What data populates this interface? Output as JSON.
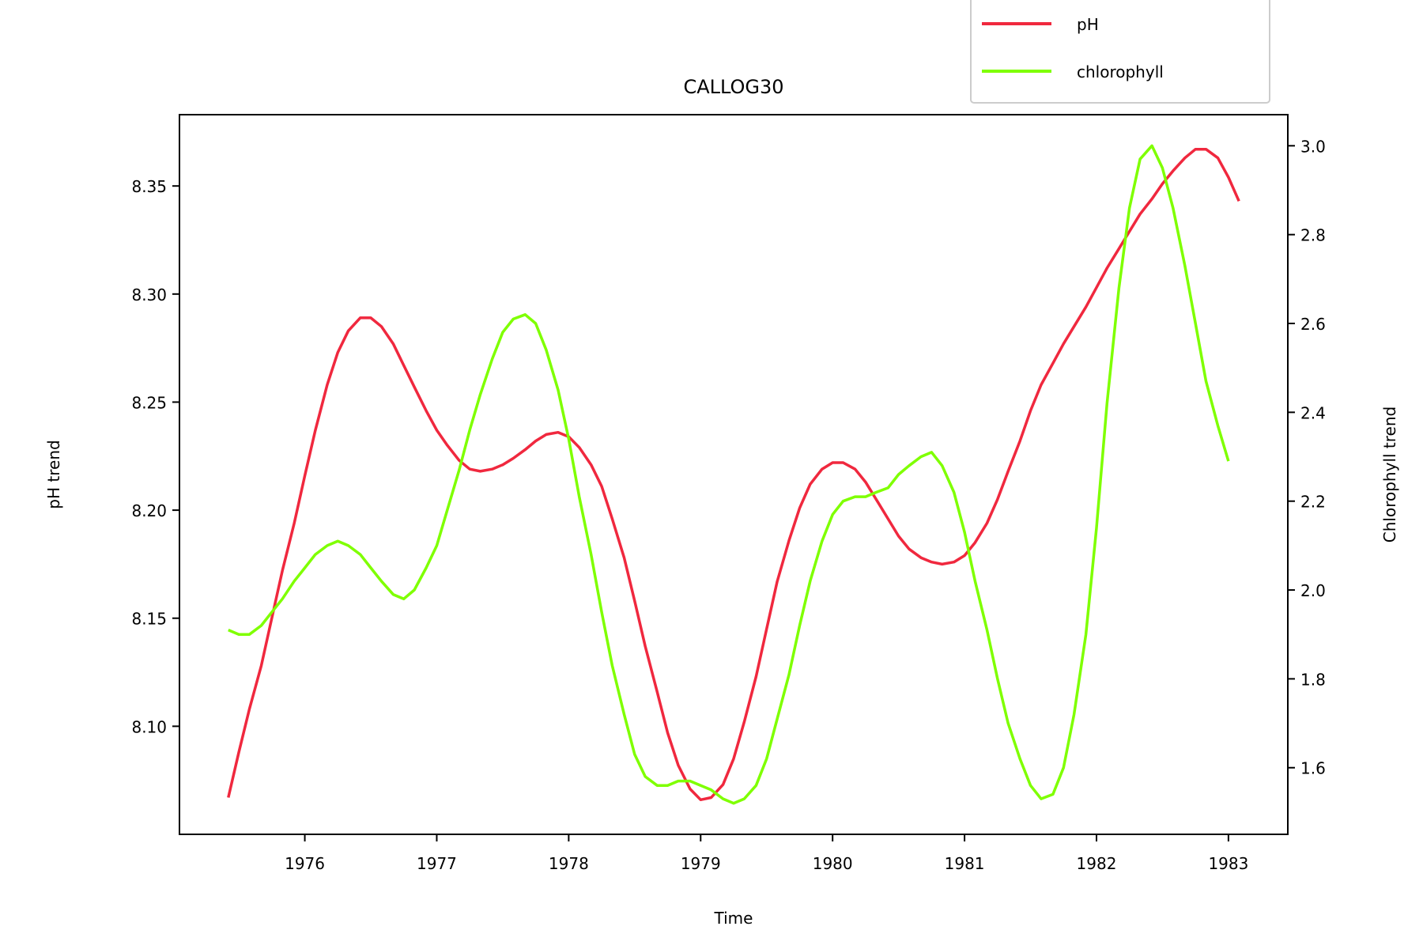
{
  "chart_data": {
    "type": "line",
    "title": "CALLOG30",
    "xlabel": "Time",
    "ylabel_left": "pH trend",
    "ylabel_right": "Chlorophyll trend",
    "xlim": [
      1975.05,
      1983.45
    ],
    "ylim_left": [
      8.05,
      8.383
    ],
    "ylim_right": [
      1.45,
      3.07
    ],
    "x_ticks": [
      "1976",
      "1977",
      "1978",
      "1979",
      "1980",
      "1981",
      "1982",
      "1983"
    ],
    "y_ticks_left": [
      "8.10",
      "8.15",
      "8.20",
      "8.25",
      "8.30",
      "8.35"
    ],
    "y_ticks_right": [
      "1.6",
      "1.8",
      "2.0",
      "2.2",
      "2.4",
      "2.6",
      "2.8",
      "3.0"
    ],
    "legend_position": "top-right",
    "grid": false,
    "series": [
      {
        "name": "pH",
        "axis": "left",
        "color": "#f0283e",
        "points": [
          [
            1975.42,
            8.067
          ],
          [
            1975.5,
            8.088
          ],
          [
            1975.58,
            8.108
          ],
          [
            1975.67,
            8.128
          ],
          [
            1975.75,
            8.15
          ],
          [
            1975.83,
            8.172
          ],
          [
            1975.92,
            8.194
          ],
          [
            1976.0,
            8.216
          ],
          [
            1976.08,
            8.237
          ],
          [
            1976.17,
            8.258
          ],
          [
            1976.25,
            8.273
          ],
          [
            1976.33,
            8.283
          ],
          [
            1976.42,
            8.289
          ],
          [
            1976.5,
            8.289
          ],
          [
            1976.58,
            8.285
          ],
          [
            1976.67,
            8.277
          ],
          [
            1976.75,
            8.267
          ],
          [
            1976.83,
            8.257
          ],
          [
            1976.92,
            8.246
          ],
          [
            1977.0,
            8.237
          ],
          [
            1977.08,
            8.23
          ],
          [
            1977.17,
            8.223
          ],
          [
            1977.25,
            8.219
          ],
          [
            1977.33,
            8.218
          ],
          [
            1977.42,
            8.219
          ],
          [
            1977.5,
            8.221
          ],
          [
            1977.58,
            8.224
          ],
          [
            1977.67,
            8.228
          ],
          [
            1977.75,
            8.232
          ],
          [
            1977.83,
            8.235
          ],
          [
            1977.92,
            8.236
          ],
          [
            1978.0,
            8.234
          ],
          [
            1978.08,
            8.229
          ],
          [
            1978.17,
            8.221
          ],
          [
            1978.25,
            8.211
          ],
          [
            1978.33,
            8.196
          ],
          [
            1978.42,
            8.178
          ],
          [
            1978.5,
            8.158
          ],
          [
            1978.58,
            8.137
          ],
          [
            1978.67,
            8.116
          ],
          [
            1978.75,
            8.097
          ],
          [
            1978.83,
            8.082
          ],
          [
            1978.92,
            8.071
          ],
          [
            1979.0,
            8.066
          ],
          [
            1979.08,
            8.067
          ],
          [
            1979.17,
            8.073
          ],
          [
            1979.25,
            8.085
          ],
          [
            1979.33,
            8.102
          ],
          [
            1979.42,
            8.123
          ],
          [
            1979.5,
            8.145
          ],
          [
            1979.58,
            8.167
          ],
          [
            1979.67,
            8.186
          ],
          [
            1979.75,
            8.201
          ],
          [
            1979.83,
            8.212
          ],
          [
            1979.92,
            8.219
          ],
          [
            1980.0,
            8.222
          ],
          [
            1980.08,
            8.222
          ],
          [
            1980.17,
            8.219
          ],
          [
            1980.25,
            8.213
          ],
          [
            1980.33,
            8.205
          ],
          [
            1980.42,
            8.196
          ],
          [
            1980.5,
            8.188
          ],
          [
            1980.58,
            8.182
          ],
          [
            1980.67,
            8.178
          ],
          [
            1980.75,
            8.176
          ],
          [
            1980.83,
            8.175
          ],
          [
            1980.92,
            8.176
          ],
          [
            1981.0,
            8.179
          ],
          [
            1981.08,
            8.185
          ],
          [
            1981.17,
            8.194
          ],
          [
            1981.25,
            8.205
          ],
          [
            1981.33,
            8.218
          ],
          [
            1981.42,
            8.232
          ],
          [
            1981.5,
            8.246
          ],
          [
            1981.58,
            8.258
          ],
          [
            1981.67,
            8.268
          ],
          [
            1981.75,
            8.277
          ],
          [
            1981.83,
            8.285
          ],
          [
            1981.92,
            8.294
          ],
          [
            1982.0,
            8.303
          ],
          [
            1982.08,
            8.312
          ],
          [
            1982.17,
            8.321
          ],
          [
            1982.25,
            8.329
          ],
          [
            1982.33,
            8.337
          ],
          [
            1982.42,
            8.344
          ],
          [
            1982.5,
            8.351
          ],
          [
            1982.58,
            8.357
          ],
          [
            1982.67,
            8.363
          ],
          [
            1982.75,
            8.367
          ],
          [
            1982.83,
            8.367
          ],
          [
            1982.92,
            8.363
          ],
          [
            1983.0,
            8.354
          ],
          [
            1983.08,
            8.343
          ]
        ]
      },
      {
        "name": "chlorophyll",
        "axis": "right",
        "color": "#7fff00",
        "points": [
          [
            1975.42,
            1.91
          ],
          [
            1975.5,
            1.9
          ],
          [
            1975.58,
            1.9
          ],
          [
            1975.67,
            1.92
          ],
          [
            1975.75,
            1.95
          ],
          [
            1975.83,
            1.98
          ],
          [
            1975.92,
            2.02
          ],
          [
            1976.0,
            2.05
          ],
          [
            1976.08,
            2.08
          ],
          [
            1976.17,
            2.1
          ],
          [
            1976.25,
            2.11
          ],
          [
            1976.33,
            2.1
          ],
          [
            1976.42,
            2.08
          ],
          [
            1976.5,
            2.05
          ],
          [
            1976.58,
            2.02
          ],
          [
            1976.67,
            1.99
          ],
          [
            1976.75,
            1.98
          ],
          [
            1976.83,
            2.0
          ],
          [
            1976.92,
            2.05
          ],
          [
            1977.0,
            2.1
          ],
          [
            1977.08,
            2.18
          ],
          [
            1977.17,
            2.27
          ],
          [
            1977.25,
            2.36
          ],
          [
            1977.33,
            2.44
          ],
          [
            1977.42,
            2.52
          ],
          [
            1977.5,
            2.58
          ],
          [
            1977.58,
            2.61
          ],
          [
            1977.67,
            2.62
          ],
          [
            1977.75,
            2.6
          ],
          [
            1977.83,
            2.54
          ],
          [
            1977.92,
            2.45
          ],
          [
            1978.0,
            2.34
          ],
          [
            1978.08,
            2.21
          ],
          [
            1978.17,
            2.08
          ],
          [
            1978.25,
            1.95
          ],
          [
            1978.33,
            1.83
          ],
          [
            1978.42,
            1.72
          ],
          [
            1978.5,
            1.63
          ],
          [
            1978.58,
            1.58
          ],
          [
            1978.67,
            1.56
          ],
          [
            1978.75,
            1.56
          ],
          [
            1978.83,
            1.57
          ],
          [
            1978.92,
            1.57
          ],
          [
            1979.0,
            1.56
          ],
          [
            1979.08,
            1.55
          ],
          [
            1979.17,
            1.53
          ],
          [
            1979.25,
            1.52
          ],
          [
            1979.33,
            1.53
          ],
          [
            1979.42,
            1.56
          ],
          [
            1979.5,
            1.62
          ],
          [
            1979.58,
            1.71
          ],
          [
            1979.67,
            1.81
          ],
          [
            1979.75,
            1.92
          ],
          [
            1979.83,
            2.02
          ],
          [
            1979.92,
            2.11
          ],
          [
            1980.0,
            2.17
          ],
          [
            1980.08,
            2.2
          ],
          [
            1980.17,
            2.21
          ],
          [
            1980.25,
            2.21
          ],
          [
            1980.33,
            2.22
          ],
          [
            1980.42,
            2.23
          ],
          [
            1980.5,
            2.26
          ],
          [
            1980.58,
            2.28
          ],
          [
            1980.67,
            2.3
          ],
          [
            1980.75,
            2.31
          ],
          [
            1980.83,
            2.28
          ],
          [
            1980.92,
            2.22
          ],
          [
            1981.0,
            2.13
          ],
          [
            1981.08,
            2.02
          ],
          [
            1981.17,
            1.91
          ],
          [
            1981.25,
            1.8
          ],
          [
            1981.33,
            1.7
          ],
          [
            1981.42,
            1.62
          ],
          [
            1981.5,
            1.56
          ],
          [
            1981.58,
            1.53
          ],
          [
            1981.67,
            1.54
          ],
          [
            1981.75,
            1.6
          ],
          [
            1981.83,
            1.72
          ],
          [
            1981.92,
            1.9
          ],
          [
            1982.0,
            2.14
          ],
          [
            1982.08,
            2.42
          ],
          [
            1982.17,
            2.68
          ],
          [
            1982.25,
            2.86
          ],
          [
            1982.33,
            2.97
          ],
          [
            1982.42,
            3.0
          ],
          [
            1982.5,
            2.95
          ],
          [
            1982.58,
            2.86
          ],
          [
            1982.67,
            2.73
          ],
          [
            1982.75,
            2.6
          ],
          [
            1982.83,
            2.47
          ],
          [
            1982.92,
            2.37
          ],
          [
            1983.0,
            2.29
          ]
        ]
      }
    ]
  }
}
